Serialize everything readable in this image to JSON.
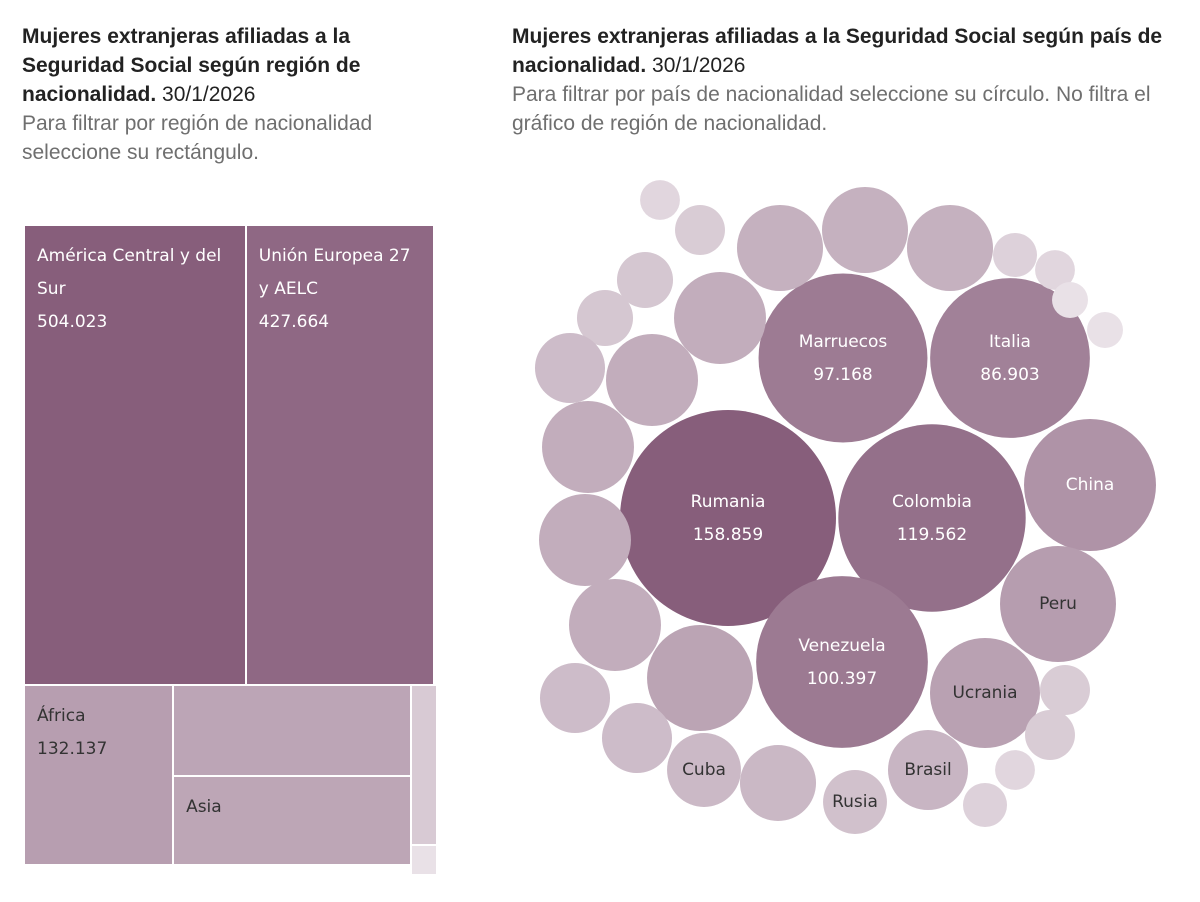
{
  "chart_data": [
    {
      "type": "treemap",
      "title": "Mujeres extranjeras afiliadas a la Seguridad Social según región de nacionalidad.",
      "date": "30/1/2026",
      "subtitle": "Para filtrar por región de nacionalidad seleccione su rectángulo.",
      "categories": [
        "América Central y del Sur",
        "Unión Europea 27 y AELC",
        "África",
        null,
        "Asia",
        null,
        null
      ],
      "values": [
        504023,
        427664,
        132137,
        106000,
        105000,
        18000,
        2300
      ],
      "value_labels": [
        "504.023",
        "427.664",
        "132.137",
        null,
        null,
        null,
        null
      ],
      "color_range": [
        "#e9e1e7",
        "#875e7b"
      ]
    },
    {
      "type": "bubble",
      "title": "Mujeres extranjeras afiliadas a la Seguridad Social según país de nacionalidad.",
      "date": "30/1/2026",
      "subtitle": "Para filtrar por país de nacionalidad seleccione su círculo. No filtra el gráfico de región de nacionalidad.",
      "categories": [
        "Rumania",
        "Colombia",
        "Venezuela",
        "Marruecos",
        "Italia",
        "China",
        "Peru",
        "Ucrania",
        "Brasil",
        "Cuba",
        "Rusia",
        null,
        null,
        null,
        null,
        null,
        null,
        null,
        null,
        null,
        null,
        null,
        null,
        null,
        null,
        null,
        null,
        null,
        null,
        null,
        null,
        null,
        null,
        null,
        null,
        null
      ],
      "values": [
        158859,
        119562,
        100397,
        97168,
        86903,
        59300,
        45800,
        41200,
        21800,
        18600,
        13900,
        25200,
        25200,
        25200,
        28800,
        28800,
        28800,
        28800,
        28800,
        38200,
        16700,
        16700,
        19700,
        6600,
        5400,
        10700,
        10700,
        16700,
        8500,
        4400,
        4400,
        8500,
        8500,
        5400,
        6600,
        5400
      ],
      "value_labels": [
        "158.859",
        "119.562",
        "100.397",
        "97.168",
        "86.903",
        null,
        null,
        null,
        null,
        null,
        null,
        null,
        null,
        null,
        null,
        null,
        null,
        null,
        null,
        null,
        null,
        null,
        null,
        null,
        null,
        null,
        null,
        null,
        null,
        null,
        null,
        null,
        null,
        null,
        null,
        null
      ],
      "color_range": [
        "#e9e1e7",
        "#875e7b"
      ]
    }
  ]
}
